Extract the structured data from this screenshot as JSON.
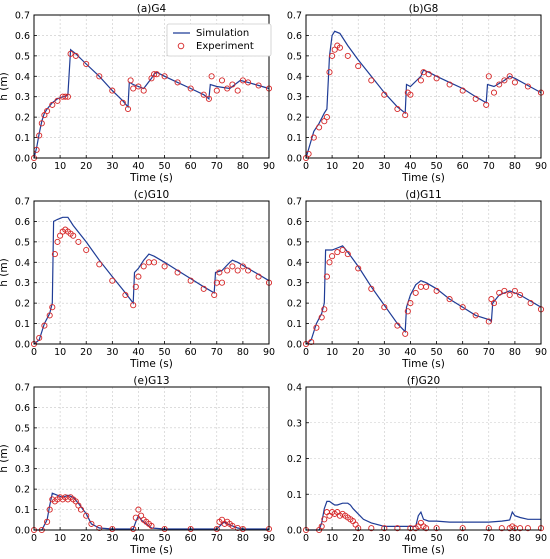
{
  "colors": {
    "simulation": "#1f3c96",
    "experiment": "#d62728"
  },
  "chart_data": [
    {
      "type": "line",
      "title": "(a)G4",
      "xlabel": "Time (s)",
      "ylabel": "h (m)",
      "xlim": [
        0,
        90
      ],
      "ylim": [
        0,
        0.7
      ],
      "xticks": [
        0,
        10,
        20,
        30,
        40,
        50,
        60,
        70,
        80,
        90
      ],
      "yticks": [
        0.0,
        0.1,
        0.2,
        0.3,
        0.4,
        0.5,
        0.6,
        0.7
      ],
      "grid": true,
      "legend": {
        "placement": "top-center",
        "entries": [
          "Simulation",
          "Experiment"
        ]
      },
      "series": [
        {
          "name": "Simulation",
          "kind": "line",
          "x": [
            0,
            1,
            2,
            3,
            4,
            5,
            7,
            9,
            11,
            12,
            13,
            14,
            16,
            20,
            25,
            30,
            34,
            36,
            36.5,
            38,
            42,
            45,
            46,
            47,
            50,
            55,
            60,
            65,
            67,
            67.5,
            70,
            75,
            78,
            79,
            82,
            86,
            90
          ],
          "y": [
            0,
            0.05,
            0.12,
            0.18,
            0.22,
            0.24,
            0.27,
            0.29,
            0.3,
            0.3,
            0.31,
            0.53,
            0.51,
            0.46,
            0.4,
            0.33,
            0.28,
            0.25,
            0.37,
            0.36,
            0.34,
            0.39,
            0.41,
            0.42,
            0.4,
            0.37,
            0.34,
            0.31,
            0.29,
            0.36,
            0.35,
            0.34,
            0.37,
            0.38,
            0.37,
            0.355,
            0.34
          ]
        },
        {
          "name": "Experiment",
          "kind": "scatter",
          "x": [
            0,
            1,
            2,
            3,
            4,
            5,
            7,
            9,
            11,
            12,
            13,
            14,
            16,
            20,
            25,
            30,
            34,
            36,
            37,
            38,
            40,
            42,
            45,
            46,
            47,
            50,
            55,
            60,
            65,
            67,
            68,
            70,
            72,
            74,
            76,
            78,
            80,
            82,
            86,
            90
          ],
          "y": [
            0,
            0.04,
            0.11,
            0.17,
            0.21,
            0.23,
            0.26,
            0.28,
            0.3,
            0.3,
            0.3,
            0.51,
            0.5,
            0.46,
            0.4,
            0.33,
            0.27,
            0.24,
            0.38,
            0.34,
            0.35,
            0.33,
            0.39,
            0.41,
            0.41,
            0.4,
            0.37,
            0.34,
            0.31,
            0.29,
            0.4,
            0.33,
            0.38,
            0.34,
            0.36,
            0.33,
            0.38,
            0.37,
            0.355,
            0.34
          ]
        }
      ]
    },
    {
      "type": "line",
      "title": "(b)G8",
      "xlabel": "Time (s)",
      "ylabel": "",
      "xlim": [
        0,
        90
      ],
      "ylim": [
        0,
        0.7
      ],
      "xticks": [
        0,
        10,
        20,
        30,
        40,
        50,
        60,
        70,
        80,
        90
      ],
      "yticks": [
        0.0,
        0.1,
        0.2,
        0.3,
        0.4,
        0.5,
        0.6,
        0.7
      ],
      "grid": true,
      "series": [
        {
          "name": "Simulation",
          "kind": "line",
          "x": [
            0,
            3,
            5,
            7,
            8,
            9,
            10,
            11,
            13,
            16,
            20,
            25,
            30,
            35,
            38,
            38.5,
            40,
            44,
            45,
            47,
            50,
            55,
            60,
            65,
            69,
            69.5,
            72,
            76,
            78,
            80,
            85,
            90
          ],
          "y": [
            0,
            0.13,
            0.17,
            0.22,
            0.24,
            0.5,
            0.6,
            0.62,
            0.61,
            0.55,
            0.48,
            0.4,
            0.32,
            0.25,
            0.22,
            0.36,
            0.35,
            0.4,
            0.43,
            0.42,
            0.4,
            0.37,
            0.34,
            0.3,
            0.27,
            0.36,
            0.35,
            0.38,
            0.4,
            0.39,
            0.355,
            0.32
          ]
        },
        {
          "name": "Experiment",
          "kind": "scatter",
          "x": [
            0,
            1,
            3,
            5,
            7,
            8,
            9,
            10,
            11,
            12,
            13,
            16,
            20,
            25,
            30,
            35,
            38,
            39,
            40,
            44,
            45,
            47,
            50,
            55,
            60,
            65,
            69,
            70,
            72,
            74,
            76,
            78,
            80,
            85,
            90
          ],
          "y": [
            0,
            0.02,
            0.1,
            0.15,
            0.18,
            0.2,
            0.42,
            0.5,
            0.53,
            0.55,
            0.54,
            0.5,
            0.45,
            0.38,
            0.31,
            0.24,
            0.21,
            0.32,
            0.31,
            0.38,
            0.42,
            0.41,
            0.39,
            0.36,
            0.33,
            0.29,
            0.26,
            0.4,
            0.32,
            0.36,
            0.38,
            0.4,
            0.37,
            0.35,
            0.32
          ]
        }
      ]
    },
    {
      "type": "line",
      "title": "(c)G10",
      "xlabel": "Time (s)",
      "ylabel": "h (m)",
      "xlim": [
        0,
        90
      ],
      "ylim": [
        0,
        0.7
      ],
      "xticks": [
        0,
        10,
        20,
        30,
        40,
        50,
        60,
        70,
        80,
        90
      ],
      "yticks": [
        0.0,
        0.1,
        0.2,
        0.3,
        0.4,
        0.5,
        0.6,
        0.7
      ],
      "grid": true,
      "series": [
        {
          "name": "Simulation",
          "kind": "line",
          "x": [
            0,
            2,
            4,
            6,
            7,
            7.5,
            9,
            11,
            13,
            15,
            20,
            25,
            30,
            35,
            38,
            38.5,
            40,
            42,
            44,
            46,
            50,
            55,
            60,
            65,
            69,
            69.5,
            72,
            75,
            76,
            78,
            82,
            86,
            90
          ],
          "y": [
            0,
            0.02,
            0.1,
            0.15,
            0.2,
            0.6,
            0.61,
            0.62,
            0.62,
            0.58,
            0.5,
            0.41,
            0.33,
            0.25,
            0.2,
            0.35,
            0.37,
            0.41,
            0.44,
            0.43,
            0.4,
            0.36,
            0.32,
            0.28,
            0.25,
            0.35,
            0.36,
            0.4,
            0.41,
            0.4,
            0.37,
            0.34,
            0.31
          ]
        },
        {
          "name": "Experiment",
          "kind": "scatter",
          "x": [
            0,
            2,
            4,
            6,
            7,
            8,
            9,
            10,
            11,
            12,
            13,
            14,
            15,
            17,
            20,
            25,
            30,
            35,
            38,
            39,
            40,
            42,
            44,
            46,
            50,
            55,
            60,
            65,
            69,
            70,
            71,
            72,
            74,
            76,
            78,
            80,
            82,
            86,
            90
          ],
          "y": [
            0,
            0.03,
            0.09,
            0.14,
            0.18,
            0.44,
            0.5,
            0.53,
            0.55,
            0.56,
            0.55,
            0.54,
            0.53,
            0.5,
            0.46,
            0.39,
            0.31,
            0.24,
            0.19,
            0.28,
            0.33,
            0.38,
            0.4,
            0.4,
            0.38,
            0.35,
            0.31,
            0.27,
            0.24,
            0.3,
            0.35,
            0.3,
            0.36,
            0.38,
            0.36,
            0.38,
            0.36,
            0.33,
            0.3
          ]
        }
      ]
    },
    {
      "type": "line",
      "title": "(d)G11",
      "xlabel": "Time (s)",
      "ylabel": "",
      "xlim": [
        0,
        90
      ],
      "ylim": [
        0,
        0.7
      ],
      "xticks": [
        0,
        10,
        20,
        30,
        40,
        50,
        60,
        70,
        80,
        90
      ],
      "yticks": [
        0.0,
        0.1,
        0.2,
        0.3,
        0.4,
        0.5,
        0.6,
        0.7
      ],
      "grid": true,
      "series": [
        {
          "name": "Simulation",
          "kind": "line",
          "x": [
            0,
            2,
            4,
            6,
            7,
            7.5,
            10,
            12,
            14,
            16,
            20,
            25,
            30,
            35,
            38,
            38.5,
            40,
            42,
            44,
            46,
            50,
            55,
            60,
            65,
            70,
            71,
            71.5,
            74,
            76,
            78,
            82,
            86,
            90
          ],
          "y": [
            0,
            0.02,
            0.1,
            0.15,
            0.2,
            0.46,
            0.46,
            0.47,
            0.48,
            0.45,
            0.38,
            0.28,
            0.19,
            0.1,
            0.06,
            0.18,
            0.24,
            0.29,
            0.31,
            0.3,
            0.27,
            0.22,
            0.18,
            0.14,
            0.12,
            0.11,
            0.2,
            0.24,
            0.25,
            0.26,
            0.24,
            0.21,
            0.18
          ]
        },
        {
          "name": "Experiment",
          "kind": "scatter",
          "x": [
            0,
            2,
            4,
            6,
            7,
            8,
            9,
            10,
            12,
            14,
            16,
            20,
            25,
            30,
            35,
            38,
            39,
            40,
            42,
            44,
            46,
            50,
            55,
            60,
            65,
            70,
            71,
            72,
            74,
            76,
            78,
            80,
            82,
            86,
            90
          ],
          "y": [
            0,
            0.01,
            0.08,
            0.13,
            0.17,
            0.33,
            0.4,
            0.43,
            0.45,
            0.46,
            0.44,
            0.37,
            0.27,
            0.18,
            0.09,
            0.05,
            0.16,
            0.2,
            0.25,
            0.28,
            0.28,
            0.26,
            0.22,
            0.18,
            0.14,
            0.11,
            0.22,
            0.2,
            0.25,
            0.26,
            0.24,
            0.26,
            0.24,
            0.2,
            0.17
          ]
        }
      ]
    },
    {
      "type": "line",
      "title": "(e)G13",
      "xlabel": "Time (s)",
      "ylabel": "h (m)",
      "xlim": [
        0,
        90
      ],
      "ylim": [
        0,
        0.7
      ],
      "xticks": [
        0,
        10,
        20,
        30,
        40,
        50,
        60,
        70,
        80,
        90
      ],
      "yticks": [
        0.0,
        0.1,
        0.2,
        0.3,
        0.4,
        0.5,
        0.6,
        0.7
      ],
      "grid": true,
      "series": [
        {
          "name": "Simulation",
          "kind": "line",
          "x": [
            0,
            3,
            5,
            6,
            7,
            9,
            11,
            13,
            15,
            17,
            20,
            22,
            25,
            30,
            38,
            39,
            40,
            41,
            42,
            43,
            44,
            45,
            50,
            60,
            70,
            72,
            73,
            74,
            76,
            78,
            80,
            90
          ],
          "y": [
            0,
            0,
            0.05,
            0.12,
            0.18,
            0.17,
            0.16,
            0.17,
            0.16,
            0.13,
            0.08,
            0.03,
            0.01,
            0.005,
            0.005,
            0.04,
            0.07,
            0.05,
            0.04,
            0.03,
            0.02,
            0.01,
            0.005,
            0.005,
            0.005,
            0.03,
            0.04,
            0.03,
            0.02,
            0.01,
            0.005,
            0.005
          ]
        },
        {
          "name": "Experiment",
          "kind": "scatter",
          "x": [
            0,
            3,
            5,
            6,
            7,
            8,
            9,
            10,
            11,
            12,
            13,
            14,
            15,
            16,
            17,
            18,
            20,
            22,
            25,
            30,
            38,
            39,
            40,
            41,
            42,
            43,
            44,
            45,
            50,
            60,
            70,
            71,
            72,
            73,
            74,
            75,
            76,
            78,
            80,
            90
          ],
          "y": [
            0,
            0,
            0.04,
            0.1,
            0.15,
            0.14,
            0.15,
            0.16,
            0.15,
            0.16,
            0.15,
            0.16,
            0.15,
            0.14,
            0.12,
            0.1,
            0.07,
            0.03,
            0.01,
            0.005,
            0.005,
            0.06,
            0.1,
            0.07,
            0.05,
            0.04,
            0.03,
            0.02,
            0.005,
            0.005,
            0.005,
            0.04,
            0.05,
            0.03,
            0.04,
            0.03,
            0.02,
            0.01,
            0.005,
            0.005
          ]
        }
      ]
    },
    {
      "type": "line",
      "title": "(f)G20",
      "xlabel": "Time (s)",
      "ylabel": "",
      "xlim": [
        0,
        90
      ],
      "ylim": [
        0,
        0.4
      ],
      "xticks": [
        0,
        10,
        20,
        30,
        40,
        50,
        60,
        70,
        80,
        90
      ],
      "yticks": [
        0.0,
        0.1,
        0.2,
        0.3,
        0.4
      ],
      "grid": true,
      "series": [
        {
          "name": "Simulation",
          "kind": "line",
          "x": [
            0,
            5,
            6,
            7,
            8,
            9,
            10,
            11,
            12,
            14,
            16,
            17,
            18,
            20,
            22,
            25,
            30,
            35,
            40,
            42,
            43,
            44,
            45,
            47,
            50,
            55,
            60,
            65,
            70,
            75,
            78,
            79,
            80,
            82,
            85,
            90
          ],
          "y": [
            0,
            0,
            0.02,
            0.06,
            0.08,
            0.08,
            0.075,
            0.07,
            0.07,
            0.075,
            0.075,
            0.07,
            0.06,
            0.045,
            0.03,
            0.02,
            0.01,
            0.01,
            0.01,
            0.01,
            0.04,
            0.05,
            0.03,
            0.025,
            0.025,
            0.022,
            0.022,
            0.022,
            0.022,
            0.025,
            0.028,
            0.05,
            0.04,
            0.035,
            0.03,
            0.03
          ]
        },
        {
          "name": "Experiment",
          "kind": "scatter",
          "x": [
            0,
            5,
            6,
            7,
            8,
            9,
            10,
            11,
            12,
            13,
            14,
            15,
            16,
            17,
            18,
            19,
            20,
            25,
            30,
            35,
            40,
            42,
            43,
            44,
            45,
            46,
            50,
            60,
            70,
            75,
            78,
            79,
            80,
            82,
            85,
            90
          ],
          "y": [
            0,
            0,
            0.01,
            0.03,
            0.05,
            0.04,
            0.05,
            0.045,
            0.05,
            0.04,
            0.045,
            0.04,
            0.035,
            0.03,
            0.025,
            0.015,
            0.005,
            0.005,
            0.005,
            0.005,
            0.005,
            0.005,
            0.01,
            0.02,
            0.01,
            0.005,
            0.005,
            0.005,
            0.005,
            0.005,
            0.005,
            0.01,
            0.005,
            0.005,
            0.005,
            0.005
          ]
        }
      ]
    }
  ]
}
